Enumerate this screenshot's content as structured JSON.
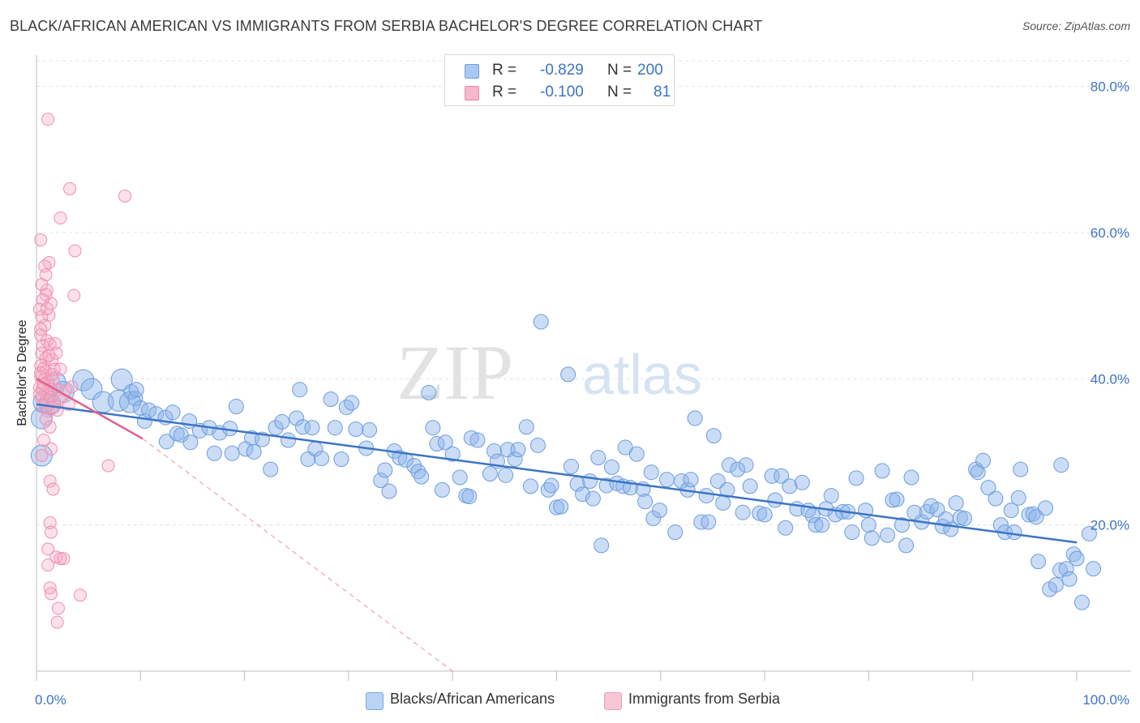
{
  "title": "BLACK/AFRICAN AMERICAN VS IMMIGRANTS FROM SERBIA BACHELOR'S DEGREE CORRELATION CHART",
  "source": "Source: ZipAtlas.com",
  "watermark": {
    "zip": "ZIP",
    "atlas": "atlas"
  },
  "legend_top": [
    {
      "r_label": "R =",
      "r_value": "-0.829",
      "n_label": "N =",
      "n_value": "200",
      "color": "#a9c8f2",
      "border": "#6f9fdd"
    },
    {
      "r_label": "R =",
      "r_value": "-0.100",
      "n_label": "N =",
      "n_value": "81",
      "color": "#f7b7cc",
      "border": "#e88aa8"
    }
  ],
  "legend_bottom": [
    {
      "label": "Blacks/African Americans",
      "color": "#b9d3f4",
      "border": "#7aa7e0"
    },
    {
      "label": "Immigrants from Serbia",
      "color": "#f9c6d6",
      "border": "#ee9db7"
    }
  ],
  "colors": {
    "blue": "#3b74c4",
    "blue_fill": "rgba(140,180,235,0.45)",
    "blue_stroke": "#6d9cdc",
    "pink": "#e0628d",
    "pink_fill": "rgba(246,170,196,0.35)",
    "pink_stroke": "#ef8fb0"
  },
  "chart_data": {
    "type": "scatter",
    "title": "BLACK/AFRICAN AMERICAN VS IMMIGRANTS FROM SERBIA BACHELOR'S DEGREE CORRELATION CHART",
    "xlabel": "",
    "ylabel": "Bachelor's Degree",
    "xlim": [
      0,
      100
    ],
    "ylim": [
      0,
      83.5
    ],
    "x_tick_labels": [
      "0.0%",
      "100.0%"
    ],
    "y_ticks": [
      20,
      40,
      60,
      80
    ],
    "y_tick_labels": [
      "20.0%",
      "40.0%",
      "60.0%",
      "80.0%"
    ],
    "grid": true,
    "series": [
      {
        "name": "Blacks/African Americans",
        "r": -0.829,
        "n": 200,
        "trend": {
          "x": [
            0,
            100
          ],
          "y": [
            36.5,
            17.6
          ],
          "style": "solid"
        },
        "points": [
          [
            0.5,
            34.6
          ],
          [
            0.5,
            29.5
          ],
          [
            0.7,
            36.8
          ],
          [
            1.3,
            36.5
          ],
          [
            1.8,
            39.5
          ],
          [
            2.6,
            38.2
          ],
          [
            4.5,
            39.8
          ],
          [
            5.3,
            38.6
          ],
          [
            6.4,
            36.8
          ],
          [
            7.9,
            37.0
          ],
          [
            8.2,
            39.9
          ],
          [
            9.0,
            36.8
          ],
          [
            9.1,
            38.2
          ],
          [
            9.5,
            37.3
          ],
          [
            9.6,
            38.5
          ],
          [
            10.0,
            36.0
          ],
          [
            10.4,
            34.2
          ],
          [
            10.8,
            35.7
          ],
          [
            11.5,
            35.2
          ],
          [
            12.4,
            34.7
          ],
          [
            12.5,
            31.4
          ],
          [
            13.1,
            35.4
          ],
          [
            13.5,
            32.5
          ],
          [
            13.9,
            32.3
          ],
          [
            14.7,
            34.2
          ],
          [
            14.8,
            31.3
          ],
          [
            15.7,
            32.9
          ],
          [
            16.6,
            33.3
          ],
          [
            17.1,
            29.8
          ],
          [
            17.6,
            32.6
          ],
          [
            18.6,
            33.2
          ],
          [
            18.8,
            29.8
          ],
          [
            19.2,
            36.2
          ],
          [
            20.1,
            30.4
          ],
          [
            20.7,
            31.9
          ],
          [
            20.9,
            30.0
          ],
          [
            21.7,
            31.7
          ],
          [
            22.5,
            27.6
          ],
          [
            23.0,
            33.3
          ],
          [
            23.6,
            34.1
          ],
          [
            24.2,
            31.6
          ],
          [
            25.0,
            34.6
          ],
          [
            25.3,
            38.5
          ],
          [
            25.6,
            33.4
          ],
          [
            26.1,
            29.0
          ],
          [
            26.5,
            33.3
          ],
          [
            26.8,
            30.4
          ],
          [
            27.4,
            29.1
          ],
          [
            28.3,
            37.2
          ],
          [
            28.7,
            33.3
          ],
          [
            29.3,
            29.0
          ],
          [
            29.8,
            36.1
          ],
          [
            30.3,
            36.7
          ],
          [
            30.7,
            33.1
          ],
          [
            31.7,
            30.5
          ],
          [
            32.0,
            33.0
          ],
          [
            33.1,
            26.1
          ],
          [
            33.5,
            27.5
          ],
          [
            33.9,
            24.6
          ],
          [
            34.4,
            30.1
          ],
          [
            34.9,
            29.2
          ],
          [
            35.5,
            28.9
          ],
          [
            36.3,
            28.1
          ],
          [
            36.7,
            27.3
          ],
          [
            37.0,
            26.6
          ],
          [
            37.7,
            38.1
          ],
          [
            38.1,
            33.3
          ],
          [
            38.5,
            31.1
          ],
          [
            39.0,
            24.8
          ],
          [
            39.3,
            31.3
          ],
          [
            40.0,
            29.7
          ],
          [
            40.7,
            26.5
          ],
          [
            41.3,
            24.0
          ],
          [
            41.6,
            23.9
          ],
          [
            41.8,
            31.9
          ],
          [
            42.4,
            31.6
          ],
          [
            43.6,
            27.0
          ],
          [
            44.0,
            30.1
          ],
          [
            44.3,
            28.7
          ],
          [
            45.1,
            26.8
          ],
          [
            45.3,
            30.3
          ],
          [
            46.0,
            29.0
          ],
          [
            46.3,
            30.3
          ],
          [
            47.1,
            33.4
          ],
          [
            47.5,
            25.3
          ],
          [
            48.5,
            47.8
          ],
          [
            48.2,
            30.9
          ],
          [
            49.2,
            24.8
          ],
          [
            49.5,
            25.4
          ],
          [
            50.0,
            22.4
          ],
          [
            50.4,
            22.5
          ],
          [
            51.1,
            40.6
          ],
          [
            51.4,
            28.0
          ],
          [
            52.0,
            25.6
          ],
          [
            52.5,
            24.2
          ],
          [
            53.2,
            26.0
          ],
          [
            53.5,
            23.6
          ],
          [
            54.0,
            29.2
          ],
          [
            54.3,
            17.2
          ],
          [
            54.8,
            25.4
          ],
          [
            55.3,
            27.9
          ],
          [
            55.8,
            25.7
          ],
          [
            56.4,
            25.3
          ],
          [
            56.6,
            30.6
          ],
          [
            57.1,
            25.1
          ],
          [
            57.7,
            29.7
          ],
          [
            58.3,
            24.9
          ],
          [
            58.5,
            23.2
          ],
          [
            59.1,
            27.2
          ],
          [
            59.3,
            20.9
          ],
          [
            59.9,
            22.0
          ],
          [
            60.6,
            26.2
          ],
          [
            61.4,
            19.0
          ],
          [
            62.0,
            26.0
          ],
          [
            62.6,
            24.8
          ],
          [
            62.9,
            26.2
          ],
          [
            63.3,
            34.6
          ],
          [
            63.9,
            20.4
          ],
          [
            64.4,
            24.0
          ],
          [
            64.6,
            20.4
          ],
          [
            65.1,
            32.2
          ],
          [
            65.5,
            26.0
          ],
          [
            66.0,
            23.0
          ],
          [
            66.4,
            24.8
          ],
          [
            66.6,
            28.2
          ],
          [
            67.4,
            27.6
          ],
          [
            67.9,
            21.7
          ],
          [
            68.2,
            28.2
          ],
          [
            68.6,
            25.3
          ],
          [
            69.5,
            21.6
          ],
          [
            70.0,
            21.4
          ],
          [
            70.7,
            26.7
          ],
          [
            71.0,
            23.4
          ],
          [
            71.6,
            26.7
          ],
          [
            72.0,
            19.6
          ],
          [
            72.4,
            25.3
          ],
          [
            73.1,
            22.2
          ],
          [
            73.6,
            25.8
          ],
          [
            74.2,
            22.0
          ],
          [
            74.6,
            21.3
          ],
          [
            74.9,
            20.0
          ],
          [
            75.5,
            20.0
          ],
          [
            75.9,
            22.2
          ],
          [
            76.4,
            24.0
          ],
          [
            76.8,
            21.4
          ],
          [
            77.5,
            21.8
          ],
          [
            78.0,
            21.8
          ],
          [
            78.4,
            19.0
          ],
          [
            78.8,
            26.4
          ],
          [
            79.7,
            22.0
          ],
          [
            80.0,
            20.0
          ],
          [
            80.3,
            18.2
          ],
          [
            81.3,
            27.4
          ],
          [
            81.8,
            18.6
          ],
          [
            82.3,
            23.4
          ],
          [
            82.7,
            23.5
          ],
          [
            83.2,
            20.0
          ],
          [
            83.6,
            17.2
          ],
          [
            84.1,
            26.5
          ],
          [
            84.4,
            21.7
          ],
          [
            85.1,
            20.4
          ],
          [
            85.6,
            21.8
          ],
          [
            86.0,
            22.6
          ],
          [
            86.6,
            22.1
          ],
          [
            87.1,
            19.8
          ],
          [
            87.4,
            20.8
          ],
          [
            87.9,
            19.4
          ],
          [
            88.4,
            23.0
          ],
          [
            88.8,
            21.0
          ],
          [
            89.2,
            20.9
          ],
          [
            90.3,
            27.6
          ],
          [
            90.5,
            27.2
          ],
          [
            91.0,
            28.8
          ],
          [
            91.5,
            25.1
          ],
          [
            92.2,
            23.6
          ],
          [
            92.7,
            20.0
          ],
          [
            93.1,
            19.0
          ],
          [
            93.7,
            22.0
          ],
          [
            94.0,
            19.0
          ],
          [
            94.4,
            23.7
          ],
          [
            94.6,
            27.6
          ],
          [
            95.4,
            21.4
          ],
          [
            95.8,
            21.5
          ],
          [
            96.1,
            21.1
          ],
          [
            96.3,
            15.0
          ],
          [
            97.0,
            22.3
          ],
          [
            97.4,
            11.2
          ],
          [
            98.0,
            11.8
          ],
          [
            98.4,
            13.8
          ],
          [
            98.5,
            28.2
          ],
          [
            99.0,
            14.0
          ],
          [
            99.3,
            12.6
          ],
          [
            99.7,
            16.0
          ],
          [
            100.0,
            15.4
          ],
          [
            100.5,
            9.4
          ],
          [
            101.2,
            18.8
          ],
          [
            101.6,
            14.0
          ]
        ]
      },
      {
        "name": "Immigrants from Serbia",
        "r": -0.1,
        "n": 81,
        "trend": {
          "x": [
            0,
            10.2
          ],
          "y": [
            40.0,
            31.8
          ],
          "dashed_x": [
            10.2,
            40
          ],
          "dashed_y": [
            31.8,
            0
          ]
        },
        "points": [
          [
            1.1,
            75.5
          ],
          [
            3.2,
            66.0
          ],
          [
            8.5,
            65.0
          ],
          [
            2.3,
            62.0
          ],
          [
            0.4,
            59.0
          ],
          [
            3.7,
            57.5
          ],
          [
            1.2,
            55.9
          ],
          [
            0.8,
            55.4
          ],
          [
            0.9,
            54.2
          ],
          [
            3.6,
            51.4
          ],
          [
            0.5,
            52.9
          ],
          [
            1.0,
            52.1
          ],
          [
            1.4,
            50.3
          ],
          [
            0.9,
            51.5
          ],
          [
            0.6,
            50.8
          ],
          [
            0.3,
            49.5
          ],
          [
            1.2,
            48.7
          ],
          [
            0.5,
            48.5
          ],
          [
            0.8,
            47.3
          ],
          [
            0.4,
            46.0
          ],
          [
            1.0,
            45.2
          ],
          [
            0.6,
            44.5
          ],
          [
            1.3,
            44.7
          ],
          [
            1.8,
            44.8
          ],
          [
            0.5,
            43.5
          ],
          [
            0.9,
            42.8
          ],
          [
            1.5,
            42.6
          ],
          [
            1.9,
            43.5
          ],
          [
            0.4,
            41.8
          ],
          [
            0.7,
            41.4
          ],
          [
            0.9,
            41.0
          ],
          [
            1.7,
            41.3
          ],
          [
            0.4,
            40.3
          ],
          [
            0.8,
            40.0
          ],
          [
            1.1,
            39.6
          ],
          [
            1.6,
            39.8
          ],
          [
            0.3,
            38.8
          ],
          [
            0.6,
            38.5
          ],
          [
            1.0,
            38.3
          ],
          [
            1.4,
            38.6
          ],
          [
            2.0,
            38.5
          ],
          [
            2.8,
            38.4
          ],
          [
            3.4,
            38.9
          ],
          [
            0.5,
            37.5
          ],
          [
            0.9,
            37.1
          ],
          [
            1.4,
            37.5
          ],
          [
            1.7,
            36.9
          ],
          [
            2.3,
            37.3
          ],
          [
            3.1,
            36.5
          ],
          [
            0.6,
            36.3
          ],
          [
            1.1,
            35.6
          ],
          [
            1.5,
            36.1
          ],
          [
            2.0,
            35.7
          ],
          [
            0.9,
            34.5
          ],
          [
            1.3,
            33.4
          ],
          [
            0.7,
            31.6
          ],
          [
            1.4,
            30.4
          ],
          [
            0.5,
            29.5
          ],
          [
            6.9,
            28.1
          ],
          [
            1.3,
            26.0
          ],
          [
            1.6,
            24.9
          ],
          [
            1.3,
            20.3
          ],
          [
            1.4,
            19.0
          ],
          [
            1.1,
            16.7
          ],
          [
            1.9,
            15.6
          ],
          [
            2.3,
            15.4
          ],
          [
            2.6,
            15.4
          ],
          [
            1.1,
            14.5
          ],
          [
            1.3,
            11.4
          ],
          [
            1.4,
            10.6
          ],
          [
            4.2,
            10.4
          ],
          [
            2.1,
            8.6
          ],
          [
            2.0,
            6.7
          ],
          [
            1.2,
            43.2
          ],
          [
            0.4,
            40.8
          ],
          [
            0.7,
            39.2
          ],
          [
            1.5,
            40.6
          ],
          [
            0.3,
            37.9
          ],
          [
            2.3,
            41.3
          ],
          [
            0.4,
            46.8
          ],
          [
            1.0,
            49.6
          ]
        ]
      }
    ]
  }
}
